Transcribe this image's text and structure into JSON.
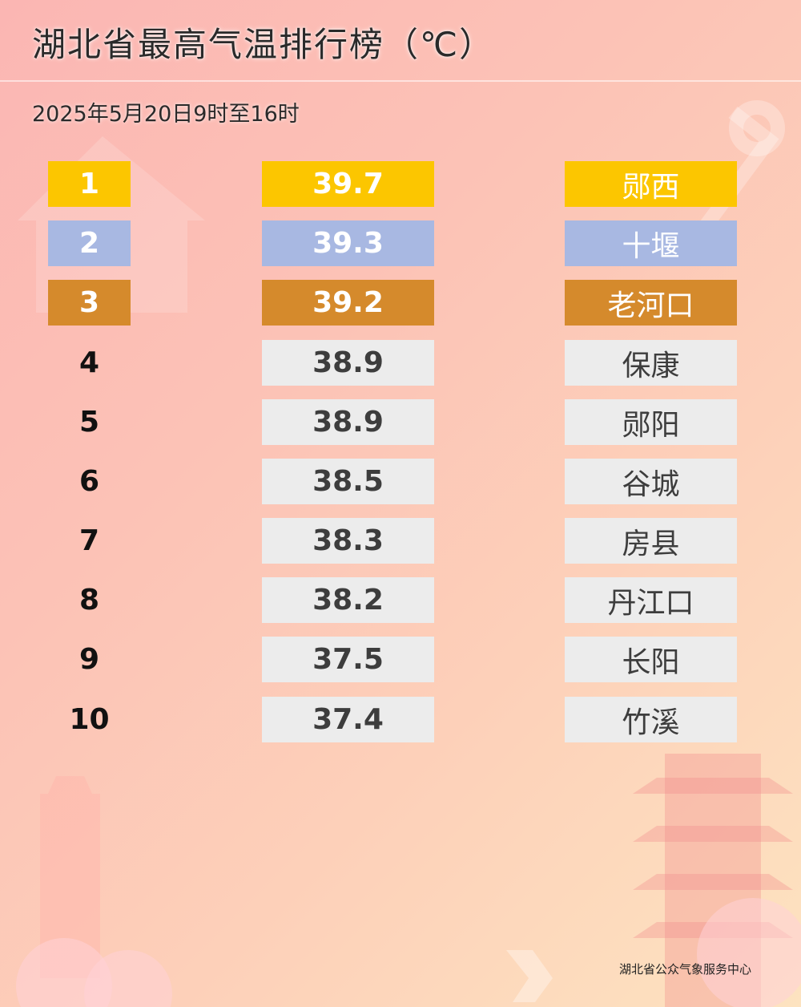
{
  "title": "湖北省最高气温排行榜（℃）",
  "subtitle": "2025年5月20日9时至16时",
  "footer": "湖北省公众气象服务中心",
  "colors": {
    "rank1": "#fcc600",
    "rank2": "#a8b8e2",
    "rank3": "#d58a2c",
    "default_cell": "#ececec"
  },
  "chart_data": {
    "type": "table",
    "columns": [
      "rank",
      "value",
      "station"
    ],
    "rows": [
      {
        "rank": "1",
        "value": "39.7",
        "station": "郧西"
      },
      {
        "rank": "2",
        "value": "39.3",
        "station": "十堰"
      },
      {
        "rank": "3",
        "value": "39.2",
        "station": "老河口"
      },
      {
        "rank": "4",
        "value": "38.9",
        "station": "保康"
      },
      {
        "rank": "5",
        "value": "38.9",
        "station": "郧阳"
      },
      {
        "rank": "6",
        "value": "38.5",
        "station": "谷城"
      },
      {
        "rank": "7",
        "value": "38.3",
        "station": "房县"
      },
      {
        "rank": "8",
        "value": "38.2",
        "station": "丹江口"
      },
      {
        "rank": "9",
        "value": "37.5",
        "station": "长阳"
      },
      {
        "rank": "10",
        "value": "37.4",
        "station": "竹溪"
      }
    ]
  }
}
